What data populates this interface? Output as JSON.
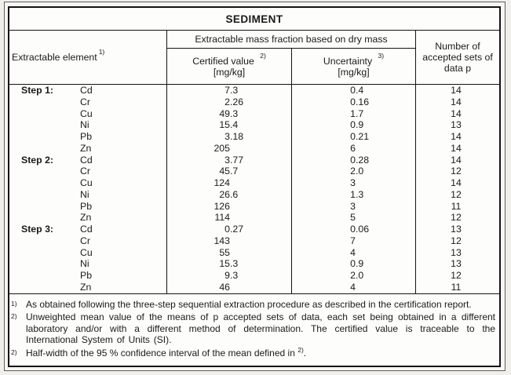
{
  "title": "SEDIMENT",
  "header": {
    "element_label": "Extractable element",
    "element_sup": "1)",
    "group_label": "Extractable mass fraction based on dry mass",
    "certified_label": "Certified value",
    "certified_sup": "2)",
    "certified_unit": "[mg/kg]",
    "uncertainty_label": "Uncertainty",
    "uncertainty_sup": "3)",
    "uncertainty_unit": "[mg/kg]",
    "sets_label": "Number of accepted sets of data p"
  },
  "rows": [
    {
      "step": "Step 1:",
      "element": "Cd",
      "certified": "7.3",
      "uncertainty": "0.4",
      "sets": "14"
    },
    {
      "step": "",
      "element": "Cr",
      "certified": "2.26",
      "uncertainty": "0.16",
      "sets": "14"
    },
    {
      "step": "",
      "element": "Cu",
      "certified": "49.3",
      "uncertainty": "1.7",
      "sets": "14"
    },
    {
      "step": "",
      "element": "Ni",
      "certified": "15.4",
      "uncertainty": "0.9",
      "sets": "13"
    },
    {
      "step": "",
      "element": "Pb",
      "certified": "3.18",
      "uncertainty": "0.21",
      "sets": "14"
    },
    {
      "step": "",
      "element": "Zn",
      "certified": "205",
      "uncertainty": "6",
      "sets": "14"
    },
    {
      "step": "Step 2:",
      "element": "Cd",
      "certified": "3.77",
      "uncertainty": "0.28",
      "sets": "14"
    },
    {
      "step": "",
      "element": "Cr",
      "certified": "45.7",
      "uncertainty": "2.0",
      "sets": "12"
    },
    {
      "step": "",
      "element": "Cu",
      "certified": "124",
      "uncertainty": "3",
      "sets": "14"
    },
    {
      "step": "",
      "element": "Ni",
      "certified": "26.6",
      "uncertainty": "1.3",
      "sets": "12"
    },
    {
      "step": "",
      "element": "Pb",
      "certified": "126",
      "uncertainty": "3",
      "sets": "11"
    },
    {
      "step": "",
      "element": "Zn",
      "certified": "114",
      "uncertainty": "5",
      "sets": "12"
    },
    {
      "step": "Step 3:",
      "element": "Cd",
      "certified": "0.27",
      "uncertainty": "0.06",
      "sets": "13"
    },
    {
      "step": "",
      "element": "Cr",
      "certified": "143",
      "uncertainty": "7",
      "sets": "12"
    },
    {
      "step": "",
      "element": "Cu",
      "certified": "55",
      "uncertainty": "4",
      "sets": "13"
    },
    {
      "step": "",
      "element": "Ni",
      "certified": "15.3",
      "uncertainty": "0.9",
      "sets": "13"
    },
    {
      "step": "",
      "element": "Pb",
      "certified": "9.3",
      "uncertainty": "2.0",
      "sets": "12"
    },
    {
      "step": "",
      "element": "Zn",
      "certified": "46",
      "uncertainty": "4",
      "sets": "11"
    }
  ],
  "footnotes": [
    {
      "marker": "1)",
      "text": "As obtained following the three-step sequential extraction procedure as described in the certification report.",
      "justify": false
    },
    {
      "marker": "2)",
      "text": "Unweighted mean value of the means of p accepted sets of data, each set being obtained in a different laboratory and/or with a different method of determination. The certified value is traceable to the International System of Units (SI).",
      "justify": true
    },
    {
      "marker": "2)",
      "text": "Half-width of the 95 % confidence interval of the mean defined in ",
      "tail_sup": "2)",
      "tail": ".",
      "justify": false
    }
  ],
  "colors": {
    "page_bg": "#f1efec",
    "table_bg": "#fdfdfb",
    "border": "#141414",
    "text": "#1a1a1a"
  }
}
